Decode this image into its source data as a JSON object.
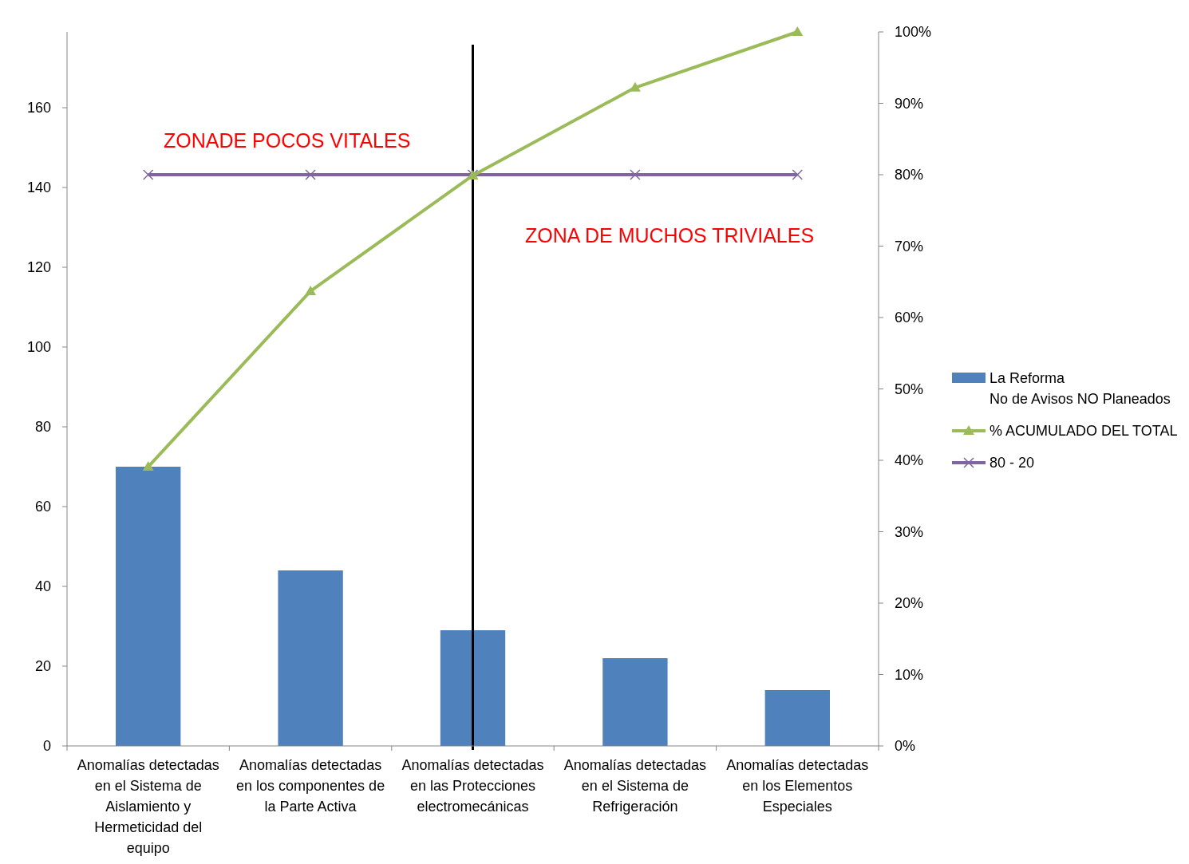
{
  "chart_data": {
    "type": "bar",
    "categories": [
      "Anomalías detectadas en el Sistema de Aislamiento y Hermeticidad del equipo",
      "Anomalías detectadas en los componentes de la Parte Activa",
      "Anomalías detectadas en las Protecciones electromecánicas",
      "Anomalías detectadas en el Sistema de Refrigeración",
      "Anomalías detectadas en los Elementos Especiales"
    ],
    "series": [
      {
        "name": "La Reforma\nNo de Avisos NO Planeados",
        "color": "#4f81bd",
        "values": [
          70,
          44,
          29,
          22,
          14
        ]
      },
      {
        "name": "% ACUMULADO DEL TOTAL",
        "type": "line",
        "axis": "y2",
        "marker": "triangle",
        "color": "#9bbb59",
        "values": [
          39.1,
          63.7,
          79.9,
          92.2,
          100
        ]
      },
      {
        "name": "80 - 20",
        "type": "line",
        "axis": "y2",
        "marker": "cross",
        "color": "#8064a2",
        "values": [
          80,
          80,
          80,
          80,
          80
        ]
      }
    ],
    "ylim": [
      0,
      179
    ],
    "yticks": [
      0,
      20,
      40,
      60,
      80,
      100,
      120,
      140,
      160
    ],
    "y2lim": [
      0,
      100
    ],
    "y2ticks": [
      {
        "value": 0,
        "label": "0%"
      },
      {
        "value": 10,
        "label": "10%"
      },
      {
        "value": 20,
        "label": "20%"
      },
      {
        "value": 30,
        "label": "30%"
      },
      {
        "value": 40,
        "label": "40%"
      },
      {
        "value": 50,
        "label": "50%"
      },
      {
        "value": 60,
        "label": "60%"
      },
      {
        "value": 70,
        "label": "70%"
      },
      {
        "value": 80,
        "label": "80%"
      },
      {
        "value": 90,
        "label": "90%"
      },
      {
        "value": 100,
        "label": "100%"
      }
    ],
    "ref_lines": [
      {
        "axis": "x",
        "value": "Anomalías detectadas en las Protecciones electromecánicas",
        "color": "#000000"
      }
    ],
    "annotations": [
      "ZONADE POCOS VITALES",
      "ZONA DE MUCHOS TRIVIALES"
    ],
    "grid": false,
    "legend": "right"
  }
}
